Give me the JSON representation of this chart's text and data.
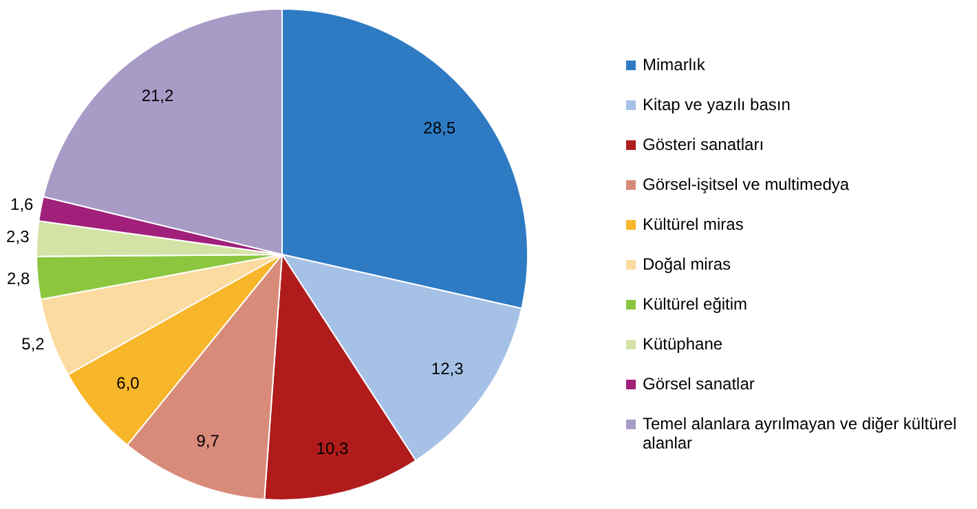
{
  "chart_data": {
    "type": "pie",
    "categories": [
      "Mimarlık",
      "Kitap ve yazılı basın",
      "Gösteri sanatları",
      "Görsel-işitsel ve multimedya",
      "Kültürel miras",
      "Doğal miras",
      "Kültürel eğitim",
      "Kütüphane",
      "Görsel sanatlar",
      "Temel alanlara ayrılmayan ve diğer kültürel alanlar"
    ],
    "values": [
      28.5,
      12.3,
      10.3,
      9.7,
      6.0,
      5.2,
      2.8,
      2.3,
      1.6,
      21.2
    ],
    "value_labels": [
      "28,5",
      "12,3",
      "10,3",
      "9,7",
      "6,0",
      "5,2",
      "2,8",
      "2,3",
      "1,6",
      "21,2"
    ],
    "colors": [
      "#2e7bc4",
      "#a6c1e6",
      "#b01c1c",
      "#d98b7a",
      "#f8b62a",
      "#fbdba0",
      "#8cc63e",
      "#d3e3a6",
      "#a0207a",
      "#a89bc6"
    ],
    "legend": "right"
  }
}
